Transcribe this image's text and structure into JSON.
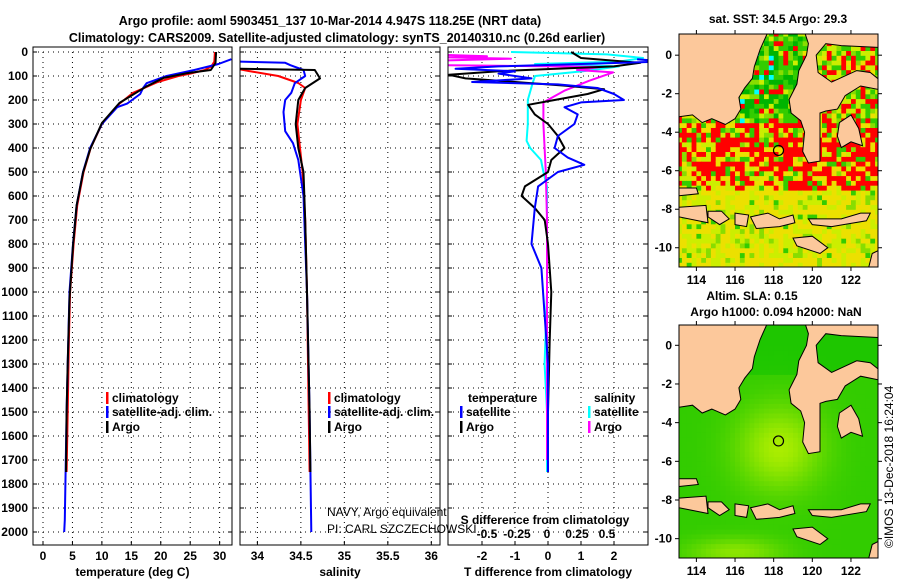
{
  "header": {
    "title_line1": "Argo profile: aoml 5903451_137 10-Mar-2014 4.947S 118.25E (NRT data)",
    "title_line2": "Climatology: CARS2009. Satellite-adjusted climatology: synTS_20140310.nc (0.26d earlier)"
  },
  "colors": {
    "climatology": "#ff0000",
    "satellite": "#0000ff",
    "argo": "#000000",
    "sal_satellite": "#00ffff",
    "sal_argo": "#ff00ff",
    "land": "#fcc89b"
  },
  "depth_axis": {
    "ticks": [
      "0",
      "100",
      "200",
      "300",
      "400",
      "500",
      "600",
      "700",
      "800",
      "900",
      "1000",
      "1100",
      "1200",
      "1300",
      "1400",
      "1500",
      "1600",
      "1700",
      "1800",
      "1900",
      "2000"
    ]
  },
  "legend_main": {
    "climatology": "climatology",
    "satellite": "satellite-adj. clim.",
    "argo": "Argo"
  },
  "legend_diff": {
    "temperature": "temperature",
    "salinity": "salinity",
    "t_satellite": "satellite",
    "t_argo": "Argo",
    "s_satellite": "satellite",
    "s_argo": "Argo"
  },
  "annotation": {
    "platform": "NAVY, Argo equivalent",
    "pi": "PI: CARL SZCZECHOWSKI"
  },
  "credit": "©IMOS 13-Dec-2018 16:24:04",
  "chart_data": [
    {
      "type": "line",
      "xlabel": "temperature (deg C)",
      "ylabel": "depth",
      "xticks": [
        "0",
        "5",
        "10",
        "15",
        "20",
        "25",
        "30"
      ],
      "xlim": [
        -1.7,
        32.1
      ],
      "ylim": [
        2050,
        0
      ],
      "grid": true,
      "series": [
        {
          "name": "climatology",
          "points": [
            [
              0,
              29.2
            ],
            [
              40,
              29.1
            ],
            [
              60,
              28.6
            ],
            [
              75,
              27.5
            ],
            [
              90,
              25
            ],
            [
              100,
              23
            ],
            [
              125,
              19.5
            ],
            [
              170,
              15.3
            ],
            [
              215,
              13
            ],
            [
              300,
              10
            ],
            [
              400,
              8.1
            ],
            [
              500,
              6.9
            ],
            [
              640,
              5.8
            ],
            [
              800,
              5.2
            ],
            [
              1000,
              4.6
            ],
            [
              1200,
              4.4
            ],
            [
              1500,
              4.2
            ],
            [
              1750,
              4.0
            ]
          ]
        },
        {
          "name": "satellite-adj. clim.",
          "points": [
            [
              30,
              32
            ],
            [
              50,
              29.8
            ],
            [
              75,
              25.7
            ],
            [
              100,
              21
            ],
            [
              130,
              17.6
            ],
            [
              150,
              17
            ],
            [
              175,
              16.5
            ],
            [
              215,
              14.3
            ],
            [
              230,
              12.6
            ],
            [
              300,
              10
            ],
            [
              400,
              8
            ],
            [
              500,
              6.8
            ],
            [
              640,
              5.7
            ],
            [
              800,
              5.1
            ],
            [
              1000,
              4.5
            ],
            [
              1300,
              4.2
            ],
            [
              1500,
              4.0
            ],
            [
              1800,
              3.8
            ],
            [
              1950,
              3.7
            ],
            [
              2000,
              3.6
            ]
          ]
        },
        {
          "name": "Argo",
          "points": [
            [
              0,
              29.4
            ],
            [
              46,
              29.3
            ],
            [
              75,
              28.5
            ],
            [
              88,
              24.5
            ],
            [
              108,
              20.5
            ],
            [
              143,
              17.6
            ],
            [
              212,
              13
            ],
            [
              296,
              10
            ],
            [
              406,
              8
            ],
            [
              503,
              6.8
            ],
            [
              640,
              5.7
            ],
            [
              807,
              5.1
            ],
            [
              1030,
              4.5
            ],
            [
              1300,
              4.2
            ],
            [
              1500,
              4.0
            ],
            [
              1750,
              3.9
            ]
          ]
        }
      ]
    },
    {
      "type": "line",
      "xlabel": "salinity",
      "ylabel": "depth",
      "xticks": [
        "34",
        "34.5",
        "35",
        "35.5",
        "36"
      ],
      "xlim": [
        33.8,
        36.1
      ],
      "ylim": [
        2050,
        0
      ],
      "grid": true,
      "series": [
        {
          "name": "climatology",
          "points": [
            [
              72,
              33.8
            ],
            [
              79,
              33.9
            ],
            [
              100,
              34.24
            ],
            [
              129,
              34.47
            ],
            [
              150,
              34.55
            ],
            [
              200,
              34.5
            ],
            [
              300,
              34.46
            ],
            [
              500,
              34.52
            ],
            [
              700,
              34.55
            ],
            [
              1000,
              34.57
            ],
            [
              1500,
              34.59
            ],
            [
              1750,
              34.6
            ]
          ]
        },
        {
          "name": "satellite-adj. clim.",
          "points": [
            [
              40,
              33.8
            ],
            [
              45,
              34.32
            ],
            [
              55,
              34.38
            ],
            [
              75,
              34.53
            ],
            [
              100,
              34.55
            ],
            [
              130,
              34.43
            ],
            [
              170,
              34.39
            ],
            [
              200,
              34.32
            ],
            [
              250,
              34.3
            ],
            [
              330,
              34.32
            ],
            [
              380,
              34.41
            ],
            [
              450,
              34.47
            ],
            [
              600,
              34.53
            ],
            [
              800,
              34.55
            ],
            [
              1000,
              34.57
            ],
            [
              1500,
              34.6
            ],
            [
              2000,
              34.62
            ]
          ]
        },
        {
          "name": "Argo",
          "points": [
            [
              70,
              33.8
            ],
            [
              75,
              34.66
            ],
            [
              110,
              34.72
            ],
            [
              150,
              34.55
            ],
            [
              200,
              34.47
            ],
            [
              300,
              34.44
            ],
            [
              400,
              34.47
            ],
            [
              500,
              34.53
            ],
            [
              700,
              34.55
            ],
            [
              1000,
              34.57
            ],
            [
              1500,
              34.6
            ],
            [
              1750,
              34.61
            ]
          ]
        }
      ]
    },
    {
      "type": "line",
      "xlabel": "T difference from climatology",
      "x2label": "S difference from climatology",
      "ylabel": "depth",
      "xticks": [
        "-2",
        "-1",
        "0",
        "1",
        "2"
      ],
      "xlim": [
        -3.03,
        3.03
      ],
      "x2ticks": [
        "-0.5",
        "-0.25",
        "0",
        "0.25",
        "0.5"
      ],
      "x2lim": [
        -0.825,
        0.842
      ],
      "ylim": [
        2050,
        0
      ],
      "grid": true,
      "series": [
        {
          "name": "temperature satellite",
          "axis": "T",
          "points": [
            [
              30,
              2.7
            ],
            [
              40,
              3.5
            ],
            [
              50,
              1.0
            ],
            [
              60,
              -1.5
            ],
            [
              70,
              -2.8
            ],
            [
              80,
              -1.0
            ],
            [
              90,
              -1.5
            ],
            [
              100,
              -1.0
            ],
            [
              110,
              -0.5
            ],
            [
              125,
              -2.3
            ],
            [
              135,
              0.3
            ],
            [
              150,
              1.5
            ],
            [
              175,
              2.0
            ],
            [
              200,
              2.3
            ],
            [
              210,
              1.0
            ],
            [
              230,
              0.5
            ],
            [
              260,
              0.9
            ],
            [
              300,
              0.8
            ],
            [
              350,
              0.3
            ],
            [
              400,
              0.2
            ],
            [
              440,
              0.6
            ],
            [
              470,
              1.1
            ],
            [
              500,
              0.3
            ],
            [
              560,
              -0.3
            ],
            [
              650,
              -0.4
            ],
            [
              800,
              -0.5
            ],
            [
              900,
              -0.2
            ],
            [
              1100,
              -0.1
            ],
            [
              1300,
              0
            ],
            [
              1500,
              0
            ],
            [
              1750,
              0
            ]
          ]
        },
        {
          "name": "temperature Argo",
          "axis": "T",
          "points": [
            [
              0,
              0.7
            ],
            [
              25,
              1.0
            ],
            [
              45,
              2.8
            ],
            [
              60,
              2.0
            ],
            [
              80,
              -1.5
            ],
            [
              95,
              -3.0
            ],
            [
              110,
              -2.5
            ],
            [
              125,
              -1.0
            ],
            [
              140,
              0.5
            ],
            [
              155,
              1.7
            ],
            [
              175,
              1.2
            ],
            [
              200,
              0.2
            ],
            [
              220,
              -0.6
            ],
            [
              260,
              -0.4
            ],
            [
              300,
              0.0
            ],
            [
              350,
              0.3
            ],
            [
              400,
              0.5
            ],
            [
              450,
              0.1
            ],
            [
              500,
              0.0
            ],
            [
              560,
              -0.7
            ],
            [
              600,
              -0.8
            ],
            [
              650,
              -0.4
            ],
            [
              700,
              -0.1
            ],
            [
              800,
              0
            ],
            [
              1000,
              0.1
            ],
            [
              1200,
              0.05
            ],
            [
              1500,
              0
            ],
            [
              1750,
              0
            ]
          ]
        },
        {
          "name": "salinity satellite",
          "axis": "S",
          "points": [
            [
              0,
              -0.3
            ],
            [
              10,
              0.5
            ],
            [
              25,
              0.8
            ],
            [
              40,
              0.6
            ],
            [
              50,
              -0.1
            ],
            [
              60,
              0.6
            ],
            [
              80,
              0.3
            ],
            [
              100,
              -0.1
            ],
            [
              130,
              -0.12
            ],
            [
              200,
              -0.16
            ],
            [
              300,
              -0.16
            ],
            [
              370,
              -0.17
            ],
            [
              400,
              -0.14
            ],
            [
              450,
              -0.05
            ],
            [
              500,
              -0.03
            ],
            [
              560,
              0
            ],
            [
              700,
              0
            ],
            [
              1000,
              0
            ],
            [
              1300,
              -0.02
            ],
            [
              1500,
              0
            ],
            [
              1750,
              0
            ]
          ]
        },
        {
          "name": "salinity Argo",
          "axis": "S",
          "points": [
            [
              12,
              -0.85
            ],
            [
              18,
              -0.5
            ],
            [
              22,
              -0.85
            ],
            [
              28,
              -0.3
            ],
            [
              35,
              -0.85
            ],
            [
              55,
              -0.85
            ],
            [
              62,
              0.46
            ],
            [
              75,
              0.25
            ],
            [
              85,
              0.55
            ],
            [
              120,
              0.35
            ],
            [
              160,
              0.15
            ],
            [
              210,
              -0.03
            ],
            [
              300,
              -0.03
            ],
            [
              500,
              -0.01
            ],
            [
              700,
              0
            ],
            [
              1000,
              0
            ],
            [
              1700,
              0
            ]
          ]
        }
      ]
    },
    {
      "type": "heatmap",
      "title": "sat. SST: 34.5 Argo: 29.3",
      "xticks": [
        "114",
        "116",
        "118",
        "120",
        "122"
      ],
      "yticks": [
        "0",
        "-2",
        "-4",
        "-6",
        "-8",
        "-10"
      ],
      "xlim": [
        113.1,
        123.4
      ],
      "ylim": [
        -11,
        1.1
      ],
      "argo_position": [
        118.25,
        -4.947
      ]
    },
    {
      "type": "heatmap",
      "title": "Altim. SLA: 0.15",
      "subtitle": "Argo h1000: 0.094 h2000: NaN",
      "xticks": [
        "114",
        "116",
        "118",
        "120",
        "122"
      ],
      "yticks": [
        "0",
        "-2",
        "-4",
        "-6",
        "-8",
        "-10"
      ],
      "xlim": [
        113.1,
        123.4
      ],
      "ylim": [
        -11,
        1.05
      ],
      "argo_position": [
        118.25,
        -4.947
      ]
    }
  ]
}
